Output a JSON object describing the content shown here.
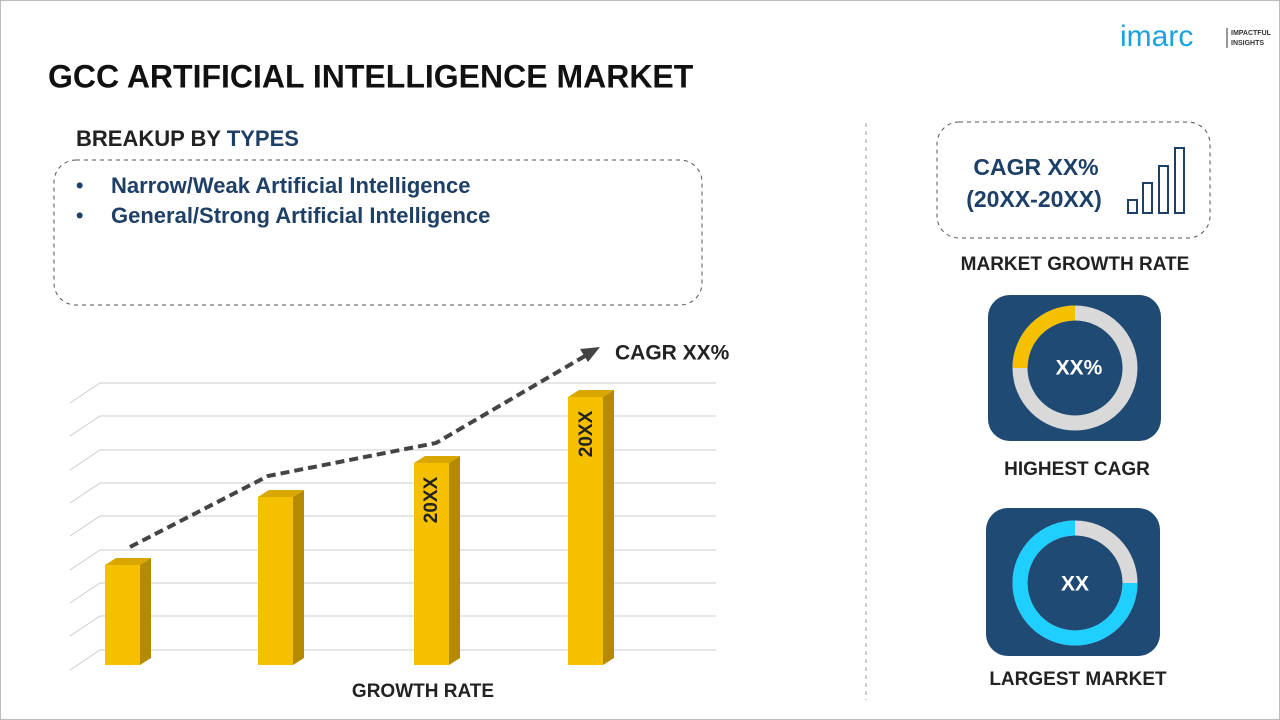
{
  "logo": {
    "name": "imarc",
    "tagline_line1": "IMPACTFUL",
    "tagline_line2": "INSIGHTS"
  },
  "title": "GCC ARTIFICIAL INTELLIGENCE MARKET",
  "breakup": {
    "heading_prefix": "BREAKUP BY",
    "heading_highlight": "TYPES",
    "items": [
      "Narrow/Weak Artificial Intelligence",
      "General/Strong Artificial Intelligence"
    ]
  },
  "growth_chart": {
    "bar_labels": [
      "20XX",
      "20XX"
    ],
    "trend_label": "CAGR XX%",
    "axis_label": "GROWTH RATE"
  },
  "cards": {
    "growth": {
      "value": "CAGR XX%",
      "period": "(20XX-20XX)",
      "label": "MARKET GROWTH RATE"
    },
    "highest": {
      "value": "XX%",
      "label": "HIGHEST CAGR"
    },
    "largest": {
      "value": "XX",
      "label": "LARGEST MARKET"
    }
  }
}
